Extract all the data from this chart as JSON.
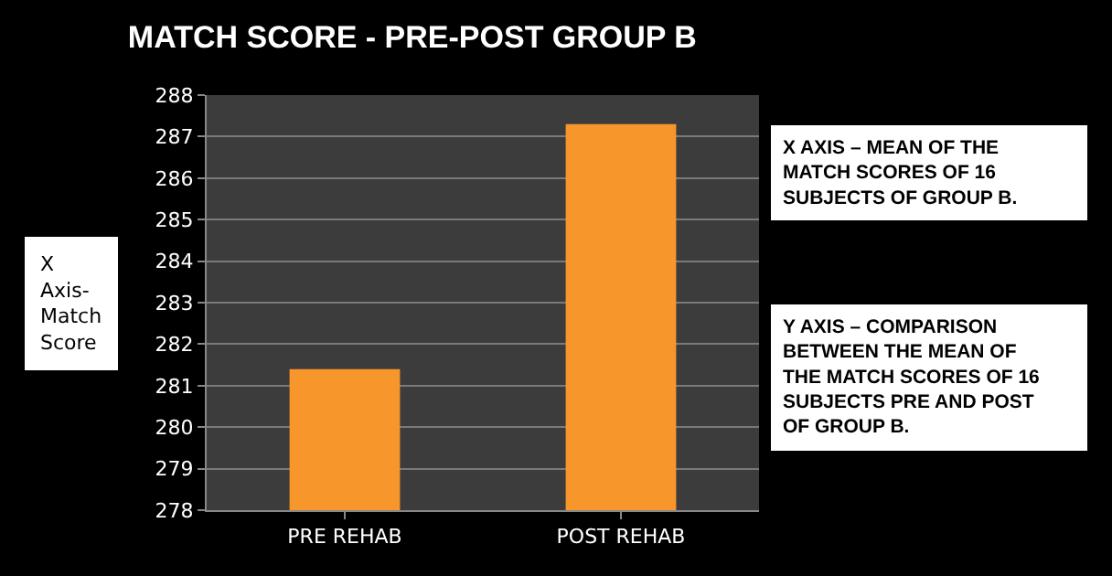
{
  "chart_data": {
    "type": "bar",
    "title": "MATCH SCORE - PRE-POST GROUP B",
    "ylabel": "X Axis- Match Score",
    "categories": [
      "PRE REHAB",
      "POST REHAB"
    ],
    "series": [
      {
        "color": "#f7962a",
        "values": [
          281.4,
          287.3
        ]
      }
    ],
    "ylim": [
      278,
      288
    ],
    "yticks": [
      278,
      279,
      280,
      281,
      282,
      283,
      284,
      285,
      286,
      287,
      288
    ],
    "grid": "y",
    "annotations": [
      "X AXIS – MEAN OF THE MATCH SCORES OF 16 SUBJECTS OF GROUP B.",
      "Y AXIS – COMPARISON BETWEEN THE MEAN OF THE MATCH SCORES OF 16 SUBJECTS PRE AND POST OF GROUP B."
    ]
  }
}
